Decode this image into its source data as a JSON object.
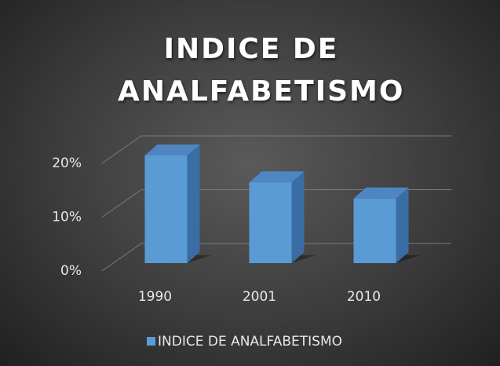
{
  "chart_data": {
    "type": "bar3d",
    "title": "INDICE DE ANALFABETISMO",
    "categories": [
      "1990",
      "2001",
      "2010"
    ],
    "series": [
      {
        "name": "INDICE DE ANALFABETISMO",
        "color": "#5b9bd5",
        "values": [
          20,
          15,
          12
        ]
      }
    ],
    "ylim": [
      0,
      20
    ],
    "yticks": [
      {
        "value": 0,
        "label": "0%"
      },
      {
        "value": 10,
        "label": "10%"
      },
      {
        "value": 20,
        "label": "20%"
      }
    ],
    "grid": true,
    "legend": "bottom"
  }
}
